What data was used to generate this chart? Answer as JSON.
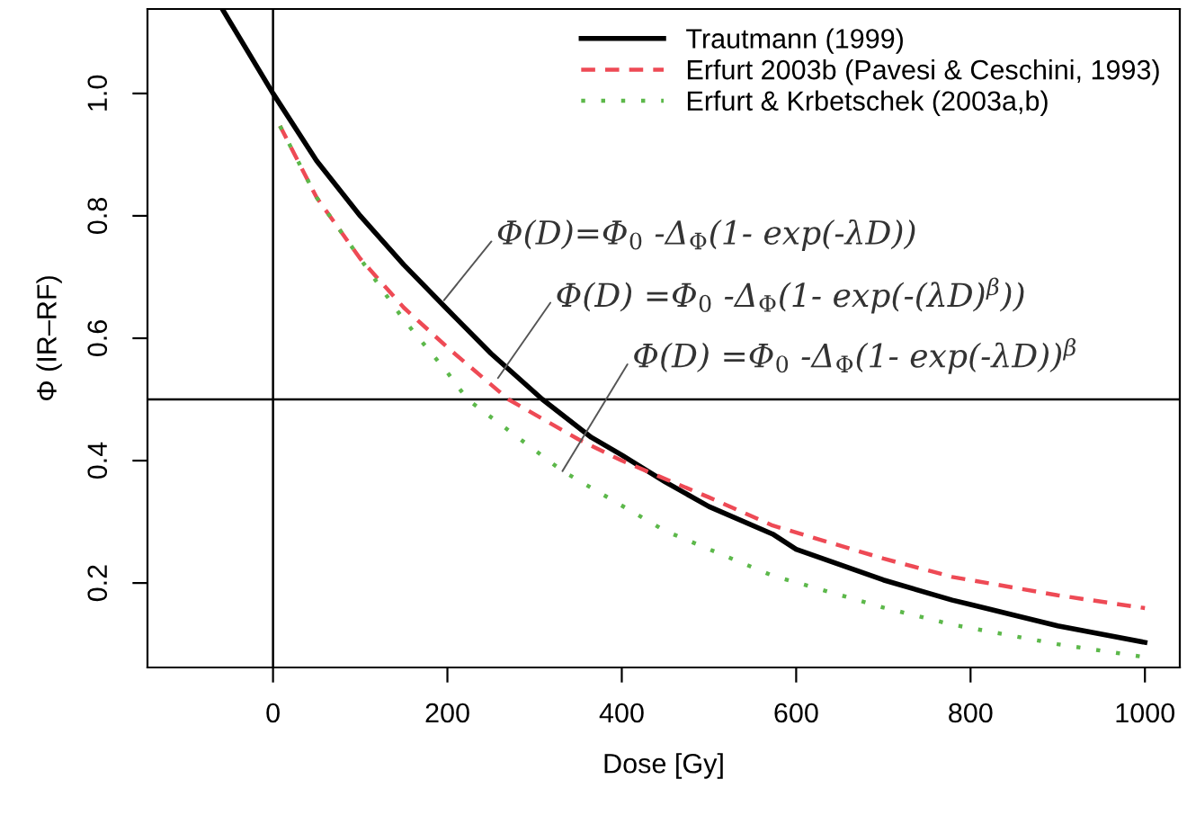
{
  "chart_data": {
    "type": "line",
    "xlabel": "Dose [Gy]",
    "ylabel": "Φ (IR–RF)",
    "xlim": [
      -144,
      1040
    ],
    "ylim": [
      0.062,
      1.138
    ],
    "xticks": [
      0,
      200,
      400,
      600,
      800,
      1000
    ],
    "yticks": [
      0.2,
      0.4,
      0.6,
      0.8,
      {
        "value": 1.0,
        "label": "1.0"
      }
    ],
    "grid": false,
    "legend": "top right",
    "series": [
      {
        "name": "Trautmann (1999)",
        "color": "#000000",
        "line_style": "solid",
        "x": [
          -57,
          0,
          50,
          100,
          150,
          200,
          250,
          309,
          365,
          400,
          450,
          500,
          573,
          600,
          700,
          779,
          800,
          900,
          1000
        ],
        "values": [
          1.135,
          1.0,
          0.89,
          0.8,
          0.72,
          0.647,
          0.575,
          0.5,
          0.438,
          0.409,
          0.365,
          0.325,
          0.28,
          0.255,
          0.205,
          0.172,
          0.165,
          0.13,
          0.103
        ]
      },
      {
        "name": "Erfurt 2003b (Pavesi & Ceschini, 1993)",
        "color": "#ee4a55",
        "line_style": "dashed",
        "x": [
          8,
          50,
          100,
          150,
          200,
          270,
          350,
          400,
          500,
          573,
          700,
          779,
          900,
          1000
        ],
        "values": [
          0.947,
          0.83,
          0.73,
          0.65,
          0.585,
          0.5,
          0.435,
          0.4,
          0.34,
          0.294,
          0.24,
          0.21,
          0.18,
          0.159
        ]
      },
      {
        "name": "Erfurt & Krbetschek (2003a,b)",
        "color": "#5cb84a",
        "line_style": "dotted",
        "x": [
          8,
          50,
          100,
          150,
          200,
          223,
          332,
          450,
          573,
          700,
          779,
          900,
          1000
        ],
        "values": [
          0.947,
          0.83,
          0.73,
          0.63,
          0.544,
          0.5,
          0.383,
          0.285,
          0.212,
          0.16,
          0.132,
          0.1,
          0.079
        ]
      }
    ],
    "ref_lines": [
      {
        "axis": "x",
        "value": 0,
        "color": "#000000"
      },
      {
        "axis": "y",
        "value": 0.5,
        "color": "#000000"
      }
    ],
    "annotations": [
      {
        "text": "Φ(D)=Φ$_{0}$ -Δ$_{Φ}$(1- exp(-λD))",
        "x": 196,
        "y": 0.662
      },
      {
        "text": "Φ(D) =Φ$_{0}$ -Δ$_{Φ}$(1- exp(-(λD)$^{β}$))",
        "x": 258,
        "y": 0.535
      },
      {
        "text": "Φ(D) =Φ$_{0}$ -Δ$_{Φ}$(1- exp(-λD))$^{β}$",
        "x": 332,
        "y": 0.383
      }
    ]
  }
}
